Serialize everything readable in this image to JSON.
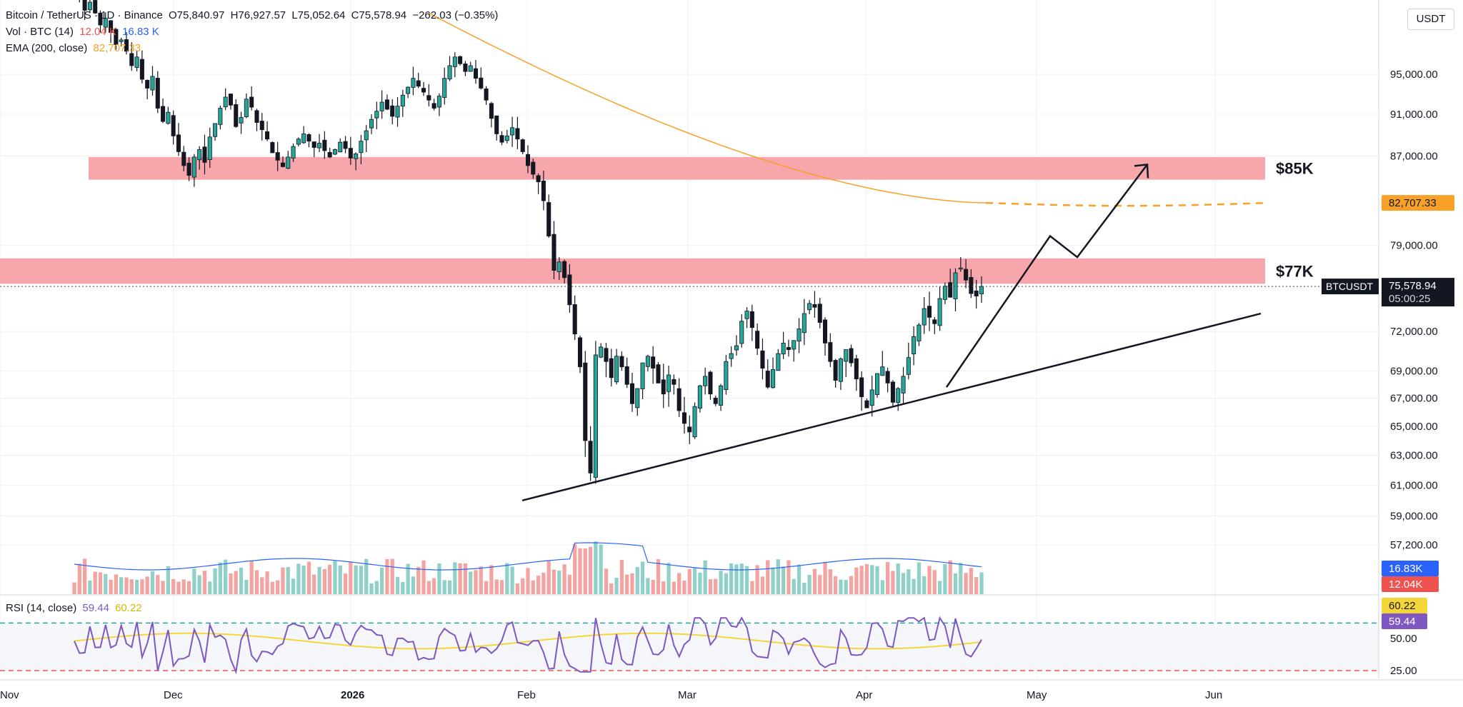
{
  "header": {
    "symbol": "Bitcoin / TetherUS · 1D · Binance",
    "open": "O75,840.97",
    "high": "H76,927.57",
    "low": "L75,052.64",
    "close": "C75,578.94",
    "change": "−262.03 (−0.35%)",
    "vol_label": "Vol · BTC (14)",
    "vol_value1": "12.04 K",
    "vol_value2": "16.83 K",
    "ema_label": "EMA (200, close)",
    "ema_value": "82,707.33",
    "rsi_label": "RSI (14, close)",
    "rsi_value1": "59.44",
    "rsi_value2": "60.22",
    "currency": "USDT"
  },
  "colors": {
    "up": "#26a69a",
    "up_fill": "#8fd1c8",
    "down": "#ef5350",
    "down_fill": "#f5a3a1",
    "zone": "#f7a1a8",
    "ema": "#f7a128",
    "rsi": "#7e57c2",
    "rsi_ma": "#f5d63a",
    "vol_ma": "#2962ff"
  },
  "chart_data": [
    {
      "type": "candlestick",
      "title": "Bitcoin / TetherUS · 1D · Binance",
      "price_axis_ticks": [
        "95,000.00",
        "91,000.00",
        "87,000.00",
        "79,000.00",
        "72,000.00",
        "69,000.00",
        "67,000.00",
        "65,000.00",
        "63,000.00",
        "61,000.00",
        "59,000.00",
        "57,200.00"
      ],
      "time_axis_ticks": [
        "Nov",
        "Dec",
        "2026",
        "Feb",
        "Mar",
        "Apr",
        "May",
        "Jun"
      ],
      "current_price_label": "BTCUSDT",
      "current_price": "75,578.94",
      "countdown": "05:00:25",
      "ema_label_value": "82,707.33",
      "zones": [
        {
          "label": "$85K",
          "from": 84800,
          "to": 86900
        },
        {
          "label": "$77K",
          "from": 75800,
          "to": 77900
        }
      ],
      "candles_close": [
        104500,
        103200,
        101800,
        102700,
        101500,
        100200,
        100900,
        99400,
        98100,
        98600,
        97400,
        95900,
        96800,
        94500,
        93600,
        94800,
        91600,
        90300,
        91200,
        88900,
        87400,
        86100,
        85200,
        86900,
        87600,
        86400,
        88800,
        90100,
        91600,
        92700,
        91900,
        89800,
        90700,
        92500,
        91700,
        90200,
        89500,
        88600,
        87300,
        86600,
        86000,
        86900,
        87900,
        88600,
        89100,
        88400,
        87800,
        88200,
        87500,
        86900,
        87600,
        88300,
        87700,
        86800,
        87200,
        88400,
        89400,
        90500,
        91300,
        92200,
        91500,
        90800,
        91800,
        92900,
        93700,
        94600,
        93800,
        93200,
        92400,
        91600,
        92800,
        94600,
        95900,
        96800,
        96100,
        95300,
        95900,
        94600,
        93600,
        92400,
        90600,
        89100,
        88300,
        88900,
        89700,
        88600,
        87400,
        86100,
        85300,
        84600,
        82900,
        79800,
        76900,
        77600,
        76300,
        74100,
        71800,
        69300,
        64000,
        61800,
        70200,
        70800,
        69700,
        68500,
        70100,
        69300,
        68000,
        66600,
        67700,
        69600,
        70100,
        69200,
        68100,
        67300,
        68700,
        68000,
        66100,
        65200,
        64600,
        66400,
        67900,
        68600,
        67300,
        66600,
        67900,
        69700,
        70300,
        70900,
        72800,
        73600,
        72300,
        70700,
        69200,
        67800,
        69100,
        70300,
        71100,
        70600,
        71300,
        72200,
        73400,
        74200,
        73900,
        72700,
        71100,
        69700,
        68300,
        69900,
        70600,
        69600,
        68400,
        67100,
        66300,
        67600,
        68800,
        69300,
        68100,
        66700,
        67700,
        68600,
        70000,
        71600,
        72500,
        73800,
        73100,
        72600,
        74600,
        75600,
        74700,
        76700,
        77100,
        76100,
        75000,
        74800,
        75578.94
      ],
      "ema": {
        "label": "EMA (200, close)",
        "last": 82707.33
      },
      "rsi": {
        "label": "RSI (14, close)",
        "value": 59.44,
        "ma": 60.22,
        "levels": [
          25,
          50
        ]
      }
    }
  ]
}
